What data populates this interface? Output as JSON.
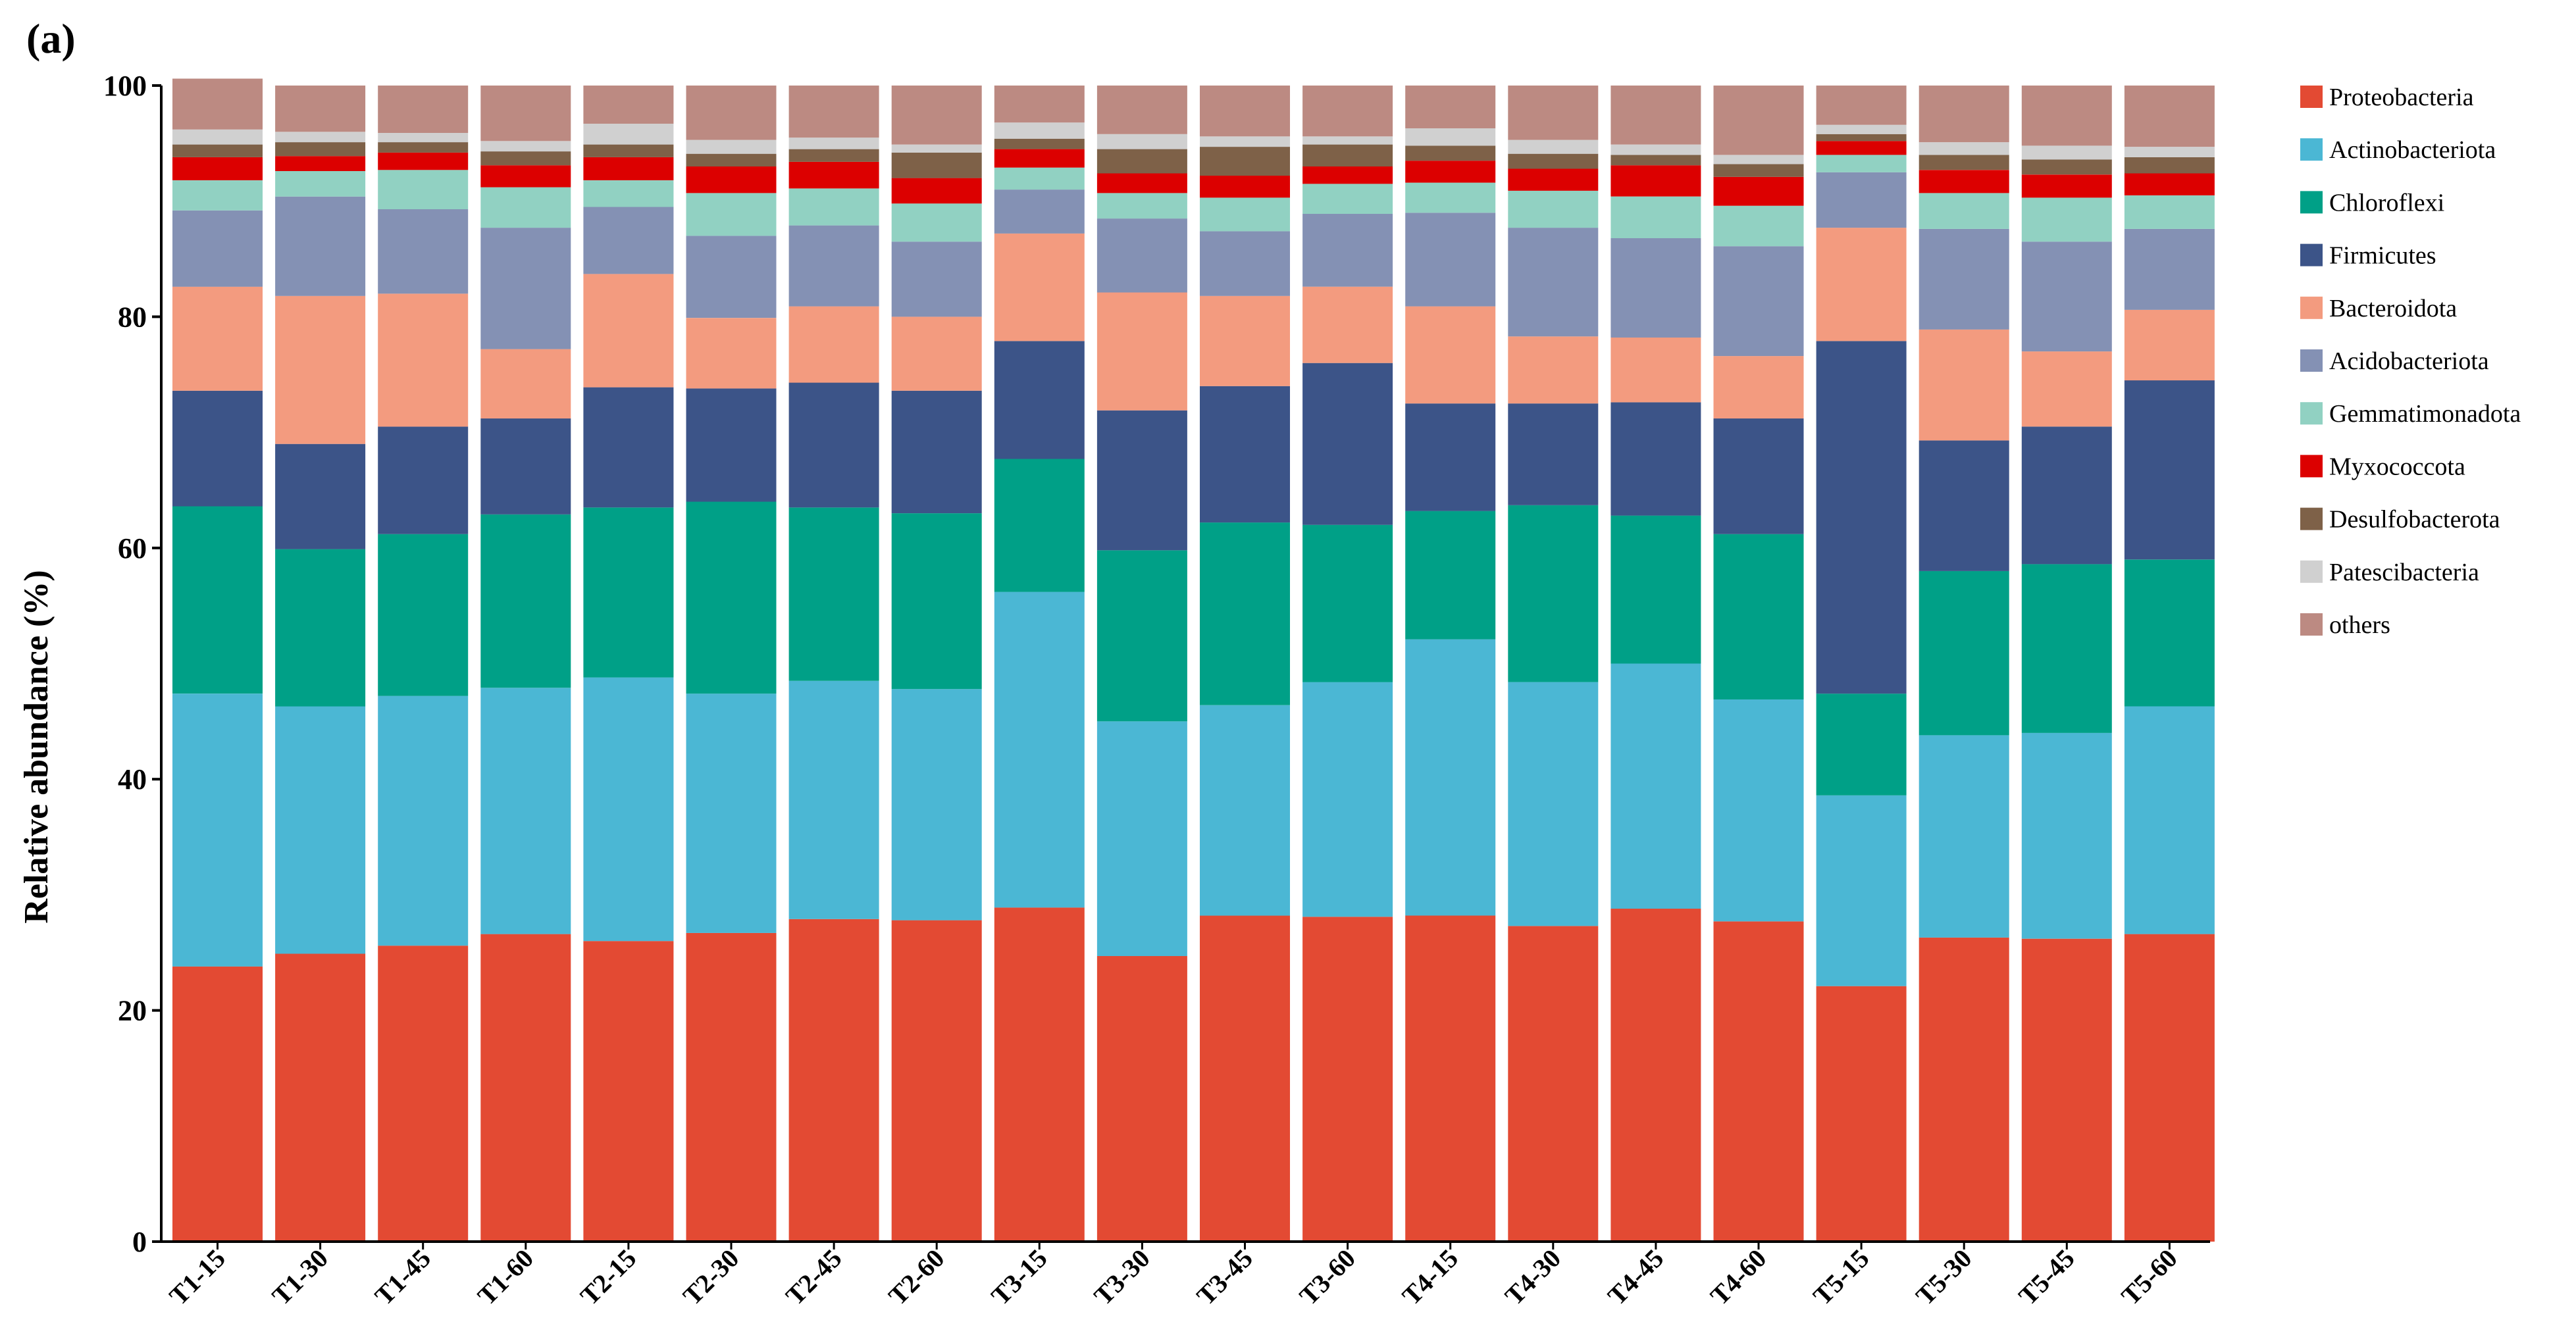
{
  "chart_data": {
    "type": "bar",
    "stacked": true,
    "panel_label": "(a)",
    "title": "",
    "xlabel": "",
    "ylabel": "Relative abundance (%)",
    "ylim": [
      0,
      100
    ],
    "yticks": [
      0,
      20,
      40,
      60,
      80,
      100
    ],
    "grid": false,
    "legend_position": "right",
    "categories": [
      "T1-15",
      "T1-30",
      "T1-45",
      "T1-60",
      "T2-15",
      "T2-30",
      "T2-45",
      "T2-60",
      "T3-15",
      "T3-30",
      "T3-45",
      "T3-60",
      "T4-15",
      "T4-30",
      "T4-45",
      "T4-60",
      "T5-15",
      "T5-30",
      "T5-45",
      "T5-60"
    ],
    "series": [
      {
        "name": "Proteobacteria",
        "color": "#E34A33",
        "values": [
          23.8,
          24.9,
          25.6,
          26.6,
          26.0,
          26.7,
          27.9,
          27.8,
          28.9,
          24.7,
          28.2,
          28.1,
          28.2,
          27.3,
          28.8,
          27.7,
          22.1,
          26.3,
          26.2,
          26.6
        ]
      },
      {
        "name": "Actinobacteriota",
        "color": "#4BB7D4",
        "values": [
          23.6,
          21.4,
          21.6,
          21.3,
          22.8,
          20.7,
          20.6,
          20.0,
          27.3,
          20.3,
          18.2,
          20.3,
          23.9,
          21.1,
          21.2,
          19.2,
          16.5,
          17.5,
          17.8,
          19.7
        ]
      },
      {
        "name": "Chloroflexi",
        "color": "#00A087",
        "values": [
          16.2,
          13.6,
          14.0,
          15.0,
          14.7,
          16.6,
          15.0,
          15.2,
          11.5,
          14.8,
          15.8,
          13.6,
          11.1,
          15.3,
          12.8,
          14.3,
          8.8,
          14.2,
          14.6,
          12.7
        ]
      },
      {
        "name": "Firmicutes",
        "color": "#3C5488",
        "values": [
          10.0,
          9.1,
          9.3,
          8.3,
          10.4,
          9.8,
          10.8,
          10.6,
          10.2,
          12.1,
          11.8,
          14.0,
          9.3,
          8.8,
          9.8,
          10.0,
          30.5,
          11.3,
          11.9,
          15.5
        ]
      },
      {
        "name": "Bacteroidota",
        "color": "#F39B7F",
        "values": [
          9.0,
          12.8,
          11.5,
          6.0,
          9.8,
          6.1,
          6.6,
          6.4,
          9.3,
          10.2,
          7.8,
          6.6,
          8.4,
          5.8,
          5.6,
          5.4,
          9.8,
          9.6,
          6.5,
          6.1
        ]
      },
      {
        "name": "Acidobacteriota",
        "color": "#8491B4",
        "values": [
          6.6,
          8.6,
          7.3,
          10.5,
          5.8,
          7.1,
          7.0,
          6.5,
          3.8,
          6.4,
          5.6,
          6.3,
          8.1,
          9.4,
          8.6,
          9.5,
          4.8,
          8.7,
          9.5,
          7.0
        ]
      },
      {
        "name": "Gemmatimonadota",
        "color": "#91D1C2",
        "values": [
          2.6,
          2.2,
          3.4,
          3.5,
          2.3,
          3.7,
          3.2,
          3.3,
          1.9,
          2.2,
          2.9,
          2.6,
          2.6,
          3.2,
          3.6,
          3.5,
          1.5,
          3.1,
          3.8,
          2.9
        ]
      },
      {
        "name": "Myxococcota",
        "color": "#DC0000",
        "values": [
          2.0,
          1.3,
          1.5,
          1.9,
          2.0,
          2.3,
          2.3,
          2.2,
          1.6,
          1.7,
          1.9,
          1.5,
          1.9,
          1.9,
          2.7,
          2.5,
          1.2,
          2.0,
          2.0,
          1.9
        ]
      },
      {
        "name": "Desulfobacterota",
        "color": "#7E6148",
        "values": [
          1.1,
          1.2,
          0.9,
          1.2,
          1.1,
          1.1,
          1.1,
          2.2,
          0.9,
          2.1,
          2.5,
          1.9,
          1.3,
          1.3,
          0.9,
          1.1,
          0.6,
          1.3,
          1.3,
          1.4
        ]
      },
      {
        "name": "Patescibacteria",
        "color": "#D0D0D0",
        "values": [
          1.3,
          0.9,
          0.8,
          0.9,
          1.8,
          1.2,
          1.0,
          0.7,
          1.4,
          1.3,
          0.9,
          0.7,
          1.5,
          1.2,
          0.9,
          0.8,
          0.8,
          1.1,
          1.2,
          0.9
        ]
      },
      {
        "name": "others",
        "color": "#BC8A82",
        "values": [
          4.4,
          4.0,
          4.1,
          4.8,
          3.3,
          4.7,
          4.5,
          5.1,
          3.2,
          4.2,
          4.4,
          4.4,
          3.7,
          4.7,
          5.1,
          6.0,
          3.4,
          4.9,
          5.2,
          5.3
        ]
      }
    ]
  }
}
